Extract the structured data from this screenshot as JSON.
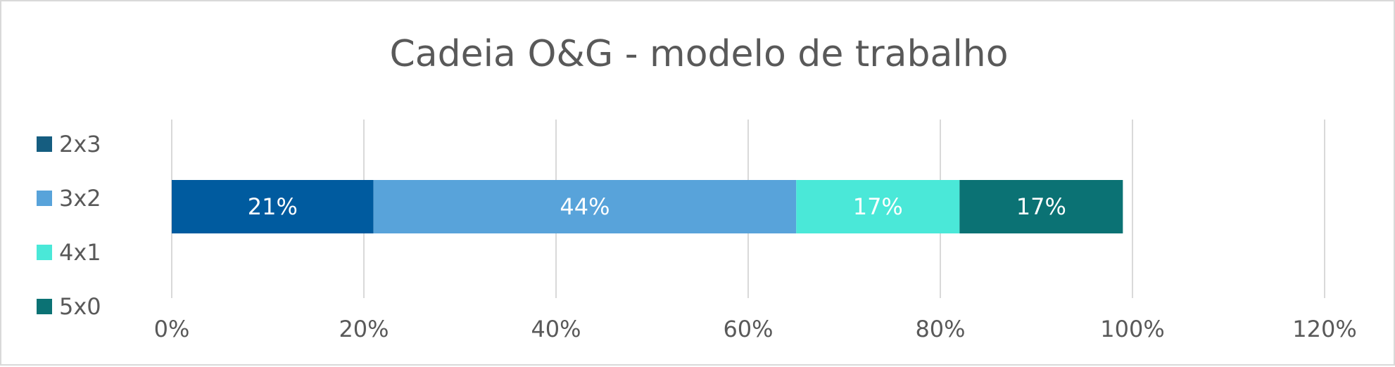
{
  "chart_data": {
    "type": "bar",
    "orientation": "horizontal",
    "stacked": true,
    "title": "Cadeia O&G - modelo de trabalho",
    "xlabel": "",
    "ylabel": "",
    "xlim": [
      0,
      120
    ],
    "x_ticks": [
      "0%",
      "20%",
      "40%",
      "60%",
      "80%",
      "100%",
      "120%"
    ],
    "grid": "vertical",
    "legend_position": "left",
    "categories": [
      ""
    ],
    "series": [
      {
        "name": "2x3",
        "values": [
          21
        ],
        "label": "21%",
        "color": "#005b9f"
      },
      {
        "name": "3x2",
        "values": [
          44
        ],
        "label": "44%",
        "color": "#58a3da"
      },
      {
        "name": "4x1",
        "values": [
          17
        ],
        "label": "17%",
        "color": "#4ae8d8"
      },
      {
        "name": "5x0",
        "values": [
          17
        ],
        "label": "17%",
        "color": "#0b7274"
      }
    ],
    "legend_marker_colors": [
      "#155d80",
      "#58a3da",
      "#4ae8d8",
      "#0b7274"
    ]
  }
}
